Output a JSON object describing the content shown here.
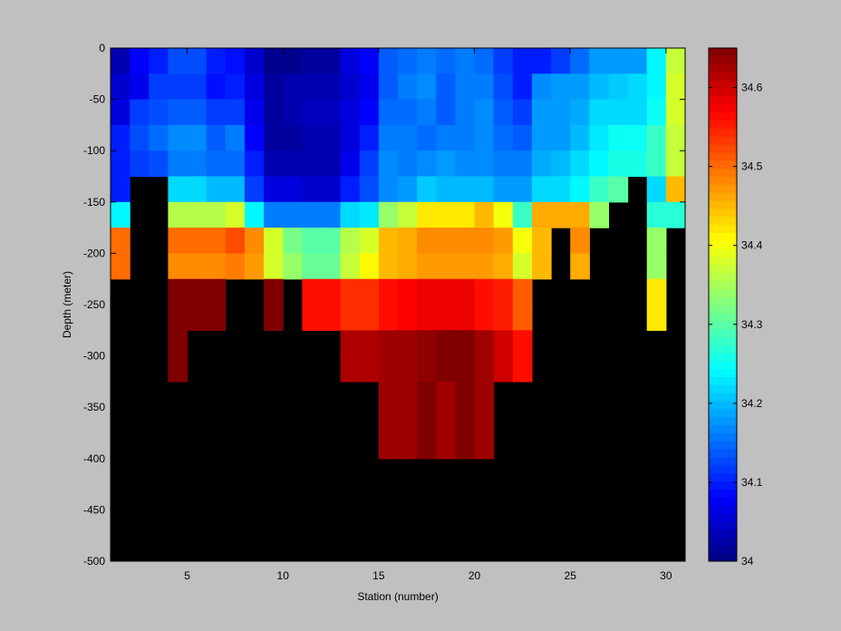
{
  "chart_data": {
    "type": "heatmap",
    "title": "",
    "xlabel": "Station (number)",
    "ylabel": "Depth (meter)",
    "xlim": [
      1,
      31
    ],
    "ylim": [
      -500,
      0
    ],
    "xticks": [
      5,
      10,
      15,
      20,
      25,
      30
    ],
    "yticks": [
      0,
      -50,
      -100,
      -150,
      -200,
      -250,
      -300,
      -350,
      -400,
      -450,
      -500
    ],
    "colorbar": {
      "colormap": "jet",
      "clim": [
        34.0,
        34.65
      ],
      "ticks": [
        34,
        34.1,
        34.2,
        34.3,
        34.4,
        34.5,
        34.6
      ],
      "tick_labels": [
        "34",
        "34.1",
        "34.2",
        "34.3",
        "34.4",
        "34.5",
        "34.6"
      ]
    },
    "missing_color": "#000000",
    "stations": [
      1,
      2,
      3,
      4,
      5,
      6,
      7,
      8,
      9,
      10,
      11,
      12,
      13,
      14,
      15,
      16,
      17,
      18,
      19,
      20,
      21,
      22,
      23,
      24,
      25,
      26,
      27,
      28,
      29,
      30
    ],
    "depths": [
      0,
      -25,
      -50,
      -75,
      -100,
      -125,
      -150,
      -175,
      -200,
      -225,
      -250,
      -275,
      -300,
      -325,
      -350,
      -375,
      -400,
      -425,
      -450,
      -475
    ],
    "values": [
      [
        34.03,
        34.08,
        34.1,
        34.13,
        34.13,
        34.1,
        34.09,
        34.05,
        34.01,
        34.01,
        34.02,
        34.02,
        34.06,
        34.08,
        34.14,
        34.15,
        34.16,
        34.15,
        34.16,
        34.15,
        34.12,
        34.1,
        34.1,
        34.12,
        34.15,
        34.18,
        34.18,
        34.18,
        34.24,
        34.37
      ],
      [
        34.05,
        34.07,
        34.12,
        34.12,
        34.12,
        34.09,
        34.1,
        34.06,
        34.02,
        34.03,
        34.03,
        34.03,
        34.05,
        34.07,
        34.14,
        34.16,
        34.17,
        34.14,
        34.16,
        34.16,
        34.13,
        34.1,
        34.17,
        34.18,
        34.18,
        34.2,
        34.21,
        34.22,
        34.24,
        34.38
      ],
      [
        34.06,
        34.12,
        34.13,
        34.14,
        34.14,
        34.12,
        34.12,
        34.07,
        34.02,
        34.03,
        34.04,
        34.04,
        34.06,
        34.08,
        34.15,
        34.15,
        34.16,
        34.14,
        34.16,
        34.17,
        34.14,
        34.12,
        34.18,
        34.18,
        34.19,
        34.22,
        34.22,
        34.22,
        34.25,
        34.38
      ],
      [
        34.1,
        34.13,
        34.15,
        34.17,
        34.17,
        34.14,
        34.16,
        34.08,
        34.02,
        34.02,
        34.03,
        34.03,
        34.06,
        34.1,
        34.16,
        34.16,
        34.15,
        34.16,
        34.16,
        34.17,
        34.15,
        34.14,
        34.18,
        34.18,
        34.2,
        34.23,
        34.25,
        34.25,
        34.28,
        34.37
      ],
      [
        34.1,
        34.12,
        34.13,
        34.16,
        34.16,
        34.15,
        34.15,
        34.1,
        34.03,
        34.03,
        34.03,
        34.03,
        34.07,
        34.12,
        34.17,
        34.16,
        34.17,
        34.18,
        34.17,
        34.17,
        34.16,
        34.16,
        34.19,
        34.2,
        34.22,
        34.24,
        34.26,
        34.26,
        34.28,
        34.37
      ],
      [
        34.1,
        null,
        null,
        34.22,
        34.22,
        34.2,
        34.2,
        34.12,
        34.06,
        34.06,
        34.05,
        34.05,
        34.1,
        34.13,
        34.17,
        34.18,
        34.21,
        34.2,
        34.2,
        34.2,
        34.18,
        34.18,
        34.22,
        34.22,
        34.24,
        34.28,
        34.3,
        null,
        34.22,
        34.45
      ],
      [
        34.24,
        null,
        null,
        34.36,
        34.36,
        34.36,
        34.38,
        34.24,
        34.16,
        34.16,
        34.16,
        34.16,
        34.22,
        34.23,
        34.34,
        34.37,
        34.42,
        34.42,
        34.42,
        34.45,
        34.4,
        34.28,
        34.46,
        34.46,
        34.46,
        34.34,
        null,
        null,
        34.27,
        34.27
      ],
      [
        34.5,
        null,
        null,
        34.5,
        34.5,
        34.5,
        34.52,
        34.48,
        34.38,
        34.32,
        34.3,
        34.3,
        34.36,
        34.38,
        34.45,
        34.46,
        34.48,
        34.48,
        34.48,
        34.48,
        34.47,
        34.4,
        34.45,
        null,
        34.48,
        null,
        null,
        null,
        34.34,
        null
      ],
      [
        34.5,
        null,
        null,
        34.48,
        34.48,
        34.48,
        34.49,
        34.47,
        34.38,
        34.34,
        34.31,
        34.31,
        34.37,
        34.41,
        34.45,
        34.46,
        34.47,
        34.47,
        34.47,
        34.47,
        34.46,
        34.38,
        34.45,
        null,
        34.46,
        null,
        null,
        null,
        34.34,
        null
      ],
      [
        null,
        null,
        null,
        34.66,
        34.66,
        34.66,
        null,
        null,
        34.66,
        null,
        34.56,
        34.56,
        34.54,
        34.54,
        34.56,
        34.57,
        34.58,
        34.58,
        34.58,
        34.56,
        34.55,
        34.51,
        null,
        null,
        null,
        null,
        null,
        null,
        34.42,
        null
      ],
      [
        null,
        null,
        null,
        34.66,
        34.66,
        34.66,
        null,
        null,
        34.66,
        null,
        34.56,
        34.56,
        34.54,
        34.54,
        34.56,
        34.57,
        34.58,
        34.58,
        34.58,
        34.56,
        34.55,
        34.51,
        null,
        null,
        null,
        null,
        null,
        null,
        34.42,
        null
      ],
      [
        null,
        null,
        null,
        34.66,
        null,
        null,
        null,
        null,
        null,
        null,
        null,
        null,
        34.62,
        34.62,
        34.63,
        34.63,
        34.64,
        34.65,
        34.66,
        34.63,
        34.6,
        34.56,
        null,
        null,
        null,
        null,
        null,
        null,
        null,
        null
      ],
      [
        null,
        null,
        null,
        34.66,
        null,
        null,
        null,
        null,
        null,
        null,
        null,
        null,
        34.62,
        34.62,
        34.63,
        34.63,
        34.64,
        34.65,
        34.66,
        34.63,
        34.6,
        34.56,
        null,
        null,
        null,
        null,
        null,
        null,
        null,
        null
      ],
      [
        null,
        null,
        null,
        null,
        null,
        null,
        null,
        null,
        null,
        null,
        null,
        null,
        null,
        null,
        34.63,
        34.63,
        34.65,
        34.63,
        34.65,
        34.63,
        null,
        null,
        null,
        null,
        null,
        null,
        null,
        null,
        null,
        null
      ],
      [
        null,
        null,
        null,
        null,
        null,
        null,
        null,
        null,
        null,
        null,
        null,
        null,
        null,
        null,
        34.63,
        34.63,
        34.65,
        34.63,
        34.65,
        34.63,
        null,
        null,
        null,
        null,
        null,
        null,
        null,
        null,
        null,
        null
      ],
      [
        null,
        null,
        null,
        null,
        null,
        null,
        null,
        null,
        null,
        null,
        null,
        null,
        null,
        null,
        34.63,
        34.63,
        34.65,
        34.63,
        34.65,
        34.63,
        null,
        null,
        null,
        null,
        null,
        null,
        null,
        null,
        null,
        null
      ],
      [
        null,
        null,
        null,
        null,
        null,
        null,
        null,
        null,
        null,
        null,
        null,
        null,
        null,
        null,
        null,
        null,
        null,
        null,
        null,
        null,
        null,
        null,
        null,
        null,
        null,
        null,
        null,
        null,
        null,
        null
      ],
      [
        null,
        null,
        null,
        null,
        null,
        null,
        null,
        null,
        null,
        null,
        null,
        null,
        null,
        null,
        null,
        null,
        null,
        null,
        null,
        null,
        null,
        null,
        null,
        null,
        null,
        null,
        null,
        null,
        null,
        null
      ],
      [
        null,
        null,
        null,
        null,
        null,
        null,
        null,
        null,
        null,
        null,
        null,
        null,
        null,
        null,
        null,
        null,
        null,
        null,
        null,
        null,
        null,
        null,
        null,
        null,
        null,
        null,
        null,
        null,
        null,
        null
      ],
      [
        null,
        null,
        null,
        null,
        null,
        null,
        null,
        null,
        null,
        null,
        null,
        null,
        null,
        null,
        null,
        null,
        null,
        null,
        null,
        null,
        null,
        null,
        null,
        null,
        null,
        null,
        null,
        null,
        null,
        null
      ]
    ]
  }
}
